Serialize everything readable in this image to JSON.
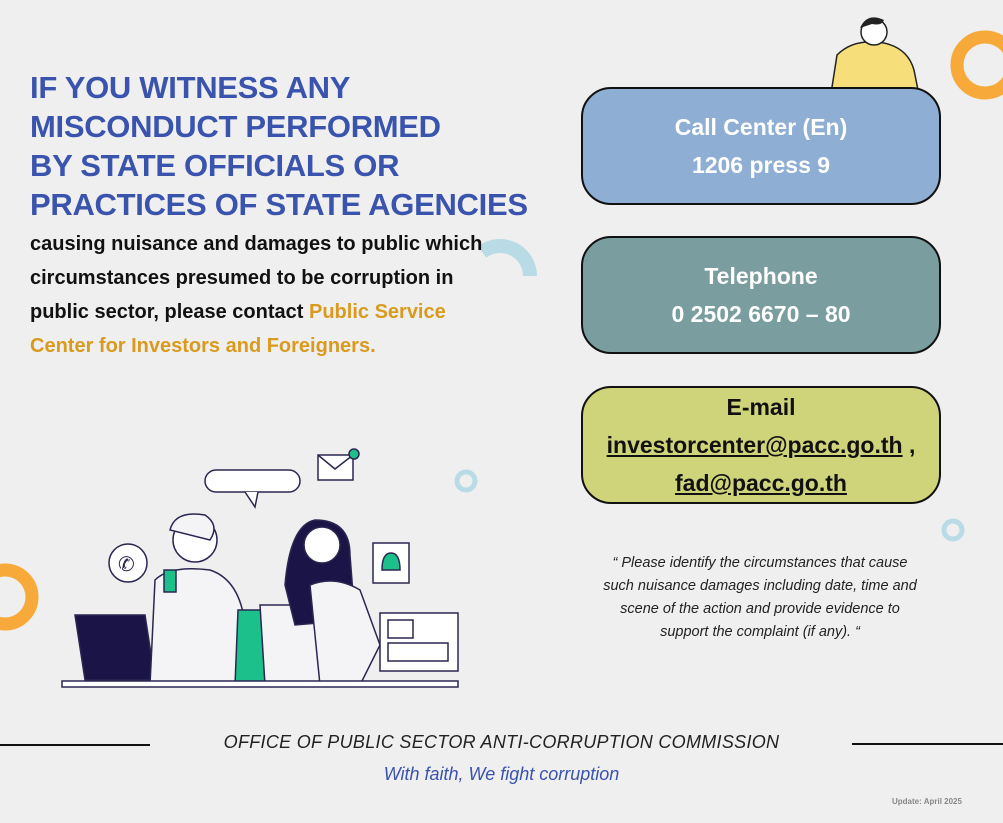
{
  "headline": [
    "IF YOU WITNESS ANY",
    "MISCONDUCT PERFORMED",
    "BY STATE OFFICIALS OR",
    "PRACTICES OF STATE AGENCIES"
  ],
  "body": {
    "text": "causing nuisance and damages to public which circumstances presumed to be corruption in public sector, please contact",
    "highlight": "Public Service Center for Investors and Foreigners."
  },
  "contacts": {
    "call_center": {
      "label": "Call Center (En)",
      "value": "1206 press 9",
      "color": "#8eaed3"
    },
    "telephone": {
      "label": "Telephone",
      "value": "0 2502 6670 – 80",
      "color": "#7a9e9f"
    },
    "email": {
      "label": "E-mail",
      "value1": "investorcenter@pacc.go.th",
      "sep": " ,",
      "value2": "fad@pacc.go.th",
      "color": "#cfd47a"
    }
  },
  "quote": "“ Please identify the circumstances that cause such nuisance damages including date, time and scene of the action and provide evidence to support the complaint (if any). “",
  "footer": {
    "office": "OFFICE OF PUBLIC SECTOR ANTI-CORRUPTION COMMISSION",
    "tagline": "With faith, We fight corruption",
    "update": "Update: April 2025"
  },
  "colors": {
    "headline": "#3a53ad",
    "highlight": "#d99a1e",
    "accent_orange": "#f7a93a",
    "accent_lightblue": "#b9dbe6"
  }
}
